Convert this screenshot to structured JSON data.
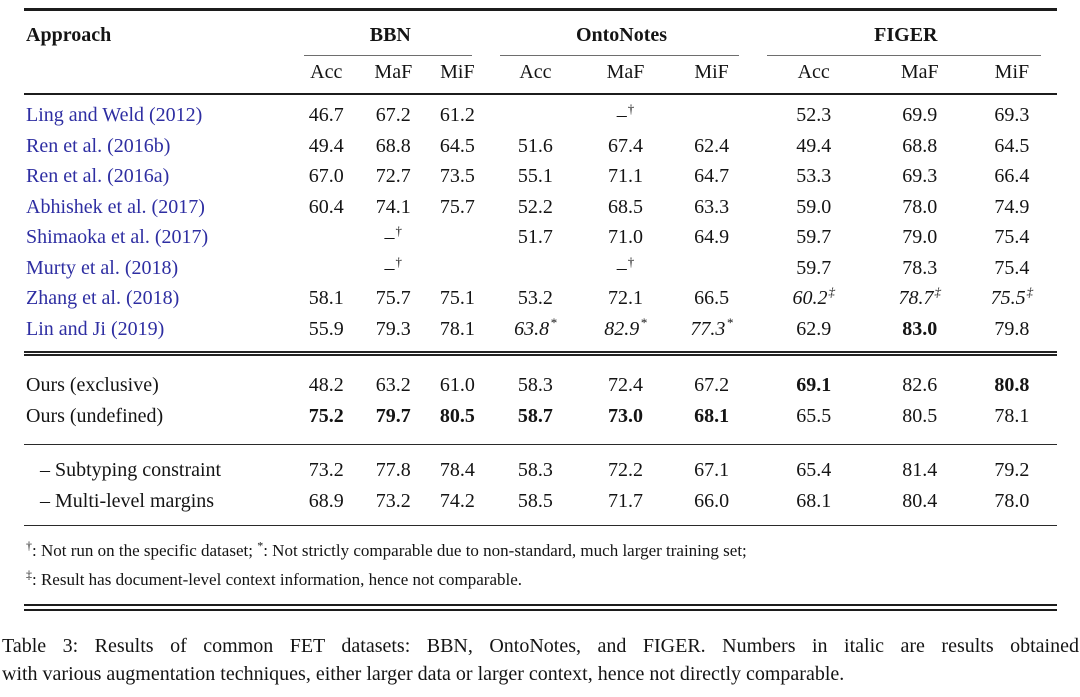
{
  "colors": {
    "citation_blue": "#2e2ea2",
    "rule_dark": "#1c1c1c",
    "rule_gray": "#6e6e6e",
    "text": "#141414"
  },
  "table": {
    "header": {
      "approach": "Approach",
      "groups": [
        "BBN",
        "OntoNotes",
        "FIGER"
      ],
      "metrics": [
        "Acc",
        "MaF",
        "MiF"
      ]
    },
    "sections": [
      {
        "name": "published",
        "rows": [
          {
            "label": "Ling and Weld (2012)",
            "cite": true,
            "cells": [
              {
                "v": "46.7"
              },
              {
                "v": "67.2"
              },
              {
                "v": "61.2"
              },
              {
                "v": ""
              },
              {
                "v": "–",
                "sup": "†"
              },
              {
                "v": ""
              },
              {
                "v": "52.3"
              },
              {
                "v": "69.9"
              },
              {
                "v": "69.3"
              }
            ]
          },
          {
            "label": "Ren et al. (2016b)",
            "cite": true,
            "cells": [
              {
                "v": "49.4"
              },
              {
                "v": "68.8"
              },
              {
                "v": "64.5"
              },
              {
                "v": "51.6"
              },
              {
                "v": "67.4"
              },
              {
                "v": "62.4"
              },
              {
                "v": "49.4"
              },
              {
                "v": "68.8"
              },
              {
                "v": "64.5"
              }
            ]
          },
          {
            "label": "Ren et al. (2016a)",
            "cite": true,
            "cells": [
              {
                "v": "67.0"
              },
              {
                "v": "72.7"
              },
              {
                "v": "73.5"
              },
              {
                "v": "55.1"
              },
              {
                "v": "71.1"
              },
              {
                "v": "64.7"
              },
              {
                "v": "53.3"
              },
              {
                "v": "69.3"
              },
              {
                "v": "66.4"
              }
            ]
          },
          {
            "label": "Abhishek et al. (2017)",
            "cite": true,
            "cells": [
              {
                "v": "60.4"
              },
              {
                "v": "74.1"
              },
              {
                "v": "75.7"
              },
              {
                "v": "52.2"
              },
              {
                "v": "68.5"
              },
              {
                "v": "63.3"
              },
              {
                "v": "59.0"
              },
              {
                "v": "78.0"
              },
              {
                "v": "74.9"
              }
            ]
          },
          {
            "label": "Shimaoka et al. (2017)",
            "cite": true,
            "cells": [
              {
                "v": ""
              },
              {
                "v": "–",
                "sup": "†"
              },
              {
                "v": ""
              },
              {
                "v": "51.7"
              },
              {
                "v": "71.0"
              },
              {
                "v": "64.9"
              },
              {
                "v": "59.7"
              },
              {
                "v": "79.0"
              },
              {
                "v": "75.4"
              }
            ]
          },
          {
            "label": "Murty et al. (2018)",
            "cite": true,
            "cells": [
              {
                "v": ""
              },
              {
                "v": "–",
                "sup": "†"
              },
              {
                "v": ""
              },
              {
                "v": ""
              },
              {
                "v": "–",
                "sup": "†"
              },
              {
                "v": ""
              },
              {
                "v": "59.7"
              },
              {
                "v": "78.3"
              },
              {
                "v": "75.4"
              }
            ]
          },
          {
            "label": "Zhang et al. (2018)",
            "cite": true,
            "cells": [
              {
                "v": "58.1"
              },
              {
                "v": "75.7"
              },
              {
                "v": "75.1"
              },
              {
                "v": "53.2"
              },
              {
                "v": "72.1"
              },
              {
                "v": "66.5"
              },
              {
                "v": "60.2",
                "sup": "‡",
                "i": true
              },
              {
                "v": "78.7",
                "sup": "‡",
                "i": true
              },
              {
                "v": "75.5",
                "sup": "‡",
                "i": true
              }
            ]
          },
          {
            "label": "Lin and Ji (2019)",
            "cite": true,
            "cells": [
              {
                "v": "55.9"
              },
              {
                "v": "79.3"
              },
              {
                "v": "78.1"
              },
              {
                "v": "63.8",
                "sup": "*",
                "i": true
              },
              {
                "v": "82.9",
                "sup": "*",
                "i": true
              },
              {
                "v": "77.3",
                "sup": "*",
                "i": true
              },
              {
                "v": "62.9"
              },
              {
                "v": "83.0",
                "b": true
              },
              {
                "v": "79.8"
              }
            ]
          }
        ]
      },
      {
        "name": "ours",
        "rows": [
          {
            "label": "Ours (exclusive)",
            "cells": [
              {
                "v": "48.2"
              },
              {
                "v": "63.2"
              },
              {
                "v": "61.0"
              },
              {
                "v": "58.3"
              },
              {
                "v": "72.4"
              },
              {
                "v": "67.2"
              },
              {
                "v": "69.1",
                "b": true
              },
              {
                "v": "82.6"
              },
              {
                "v": "80.8",
                "b": true
              }
            ]
          },
          {
            "label": "Ours (undefined)",
            "cells": [
              {
                "v": "75.2",
                "b": true
              },
              {
                "v": "79.7",
                "b": true
              },
              {
                "v": "80.5",
                "b": true
              },
              {
                "v": "58.7",
                "b": true
              },
              {
                "v": "73.0",
                "b": true
              },
              {
                "v": "68.1",
                "b": true
              },
              {
                "v": "65.5"
              },
              {
                "v": "80.5"
              },
              {
                "v": "78.1"
              }
            ]
          }
        ]
      },
      {
        "name": "ablation",
        "rows": [
          {
            "label": "– Subtyping constraint",
            "ablation": true,
            "cells": [
              {
                "v": "73.2"
              },
              {
                "v": "77.8"
              },
              {
                "v": "78.4"
              },
              {
                "v": "58.3"
              },
              {
                "v": "72.2"
              },
              {
                "v": "67.1"
              },
              {
                "v": "65.4"
              },
              {
                "v": "81.4"
              },
              {
                "v": "79.2"
              }
            ]
          },
          {
            "label": "– Multi-level margins",
            "ablation": true,
            "cells": [
              {
                "v": "68.9"
              },
              {
                "v": "73.2"
              },
              {
                "v": "74.2"
              },
              {
                "v": "58.5"
              },
              {
                "v": "71.7"
              },
              {
                "v": "66.0"
              },
              {
                "v": "68.1"
              },
              {
                "v": "80.4"
              },
              {
                "v": "78.0"
              }
            ]
          }
        ]
      }
    ],
    "footnotes": [
      [
        {
          "sup": "†",
          "t": ": Not run on the specific dataset; "
        },
        {
          "sup": "*",
          "t": ": Not strictly comparable due to non-standard, much larger training set;"
        }
      ],
      [
        {
          "sup": "‡",
          "t": ": Result has document-level context information, hence not comparable."
        }
      ]
    ]
  },
  "caption": {
    "lines": [
      "Table 3: Results of common FET datasets: BBN, OntoNotes, and FIGER. Numbers in italic are results obtained",
      "with various augmentation techniques, either larger data or larger context, hence not directly comparable."
    ]
  }
}
